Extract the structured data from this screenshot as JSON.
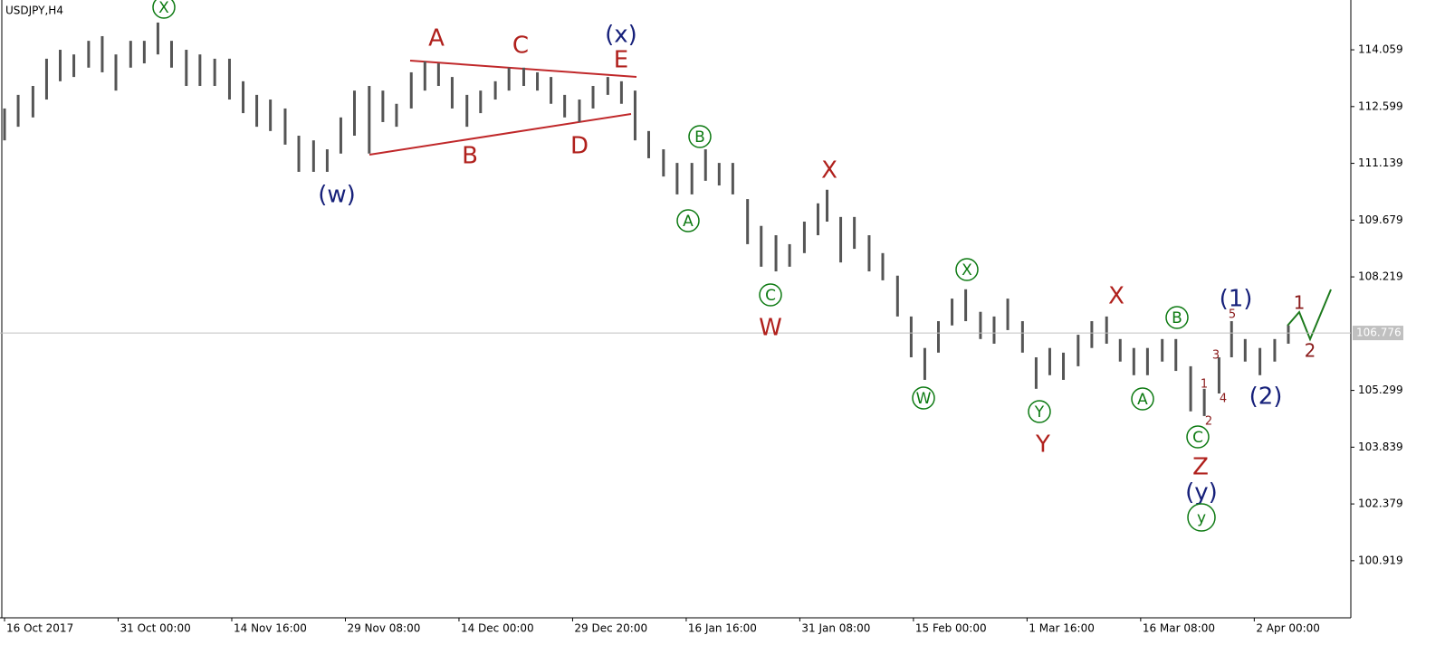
{
  "chart_data": {
    "type": "ohlc",
    "symbol": "USDJPY,H4",
    "x": [
      0,
      0.12,
      0.25,
      0.37,
      0.49,
      0.61,
      0.74,
      0.86,
      0.98,
      1.11,
      1.23,
      1.35,
      1.47,
      1.6,
      1.72,
      1.85,
      1.98,
      2.1,
      2.22,
      2.34,
      2.47,
      2.59,
      2.72,
      2.84,
      2.96,
      3.08,
      3.21,
      3.33,
      3.45,
      3.58,
      3.7,
      3.82,
      3.94,
      4.07,
      4.19,
      4.32,
      4.44,
      4.57,
      4.69,
      4.81,
      4.93,
      5.06,
      5.18,
      5.31,
      5.43,
      5.55,
      5.67,
      5.8,
      5.92,
      6.05,
      6.17,
      6.29,
      6.41,
      6.54,
      6.66,
      6.79,
      6.91,
      7.04,
      7.16,
      7.24,
      7.36,
      7.48,
      7.61,
      7.73,
      7.86,
      7.98,
      8.1,
      8.22,
      8.34,
      8.46,
      8.59,
      8.71,
      8.83,
      8.96,
      9.08,
      9.2,
      9.32,
      9.45,
      9.57,
      9.7,
      9.82,
      9.94,
      10.06,
      10.19,
      10.31,
      10.44,
      10.56,
      10.69,
      10.8,
      10.92,
      11.05,
      11.18,
      11.3
    ],
    "high": [
      112.55,
      112.9,
      113.13,
      113.83,
      114.06,
      113.94,
      114.29,
      114.41,
      113.94,
      114.29,
      114.29,
      114.76,
      114.29,
      114.06,
      113.94,
      113.83,
      113.83,
      113.25,
      112.9,
      112.78,
      112.55,
      111.85,
      111.73,
      111.5,
      112.32,
      113.01,
      113.13,
      113.01,
      112.67,
      113.48,
      113.76,
      113.71,
      113.36,
      112.9,
      113.01,
      113.25,
      113.6,
      113.6,
      113.48,
      113.36,
      112.9,
      112.78,
      113.13,
      113.36,
      113.25,
      113.01,
      111.97,
      111.5,
      111.15,
      111.15,
      111.5,
      111.15,
      111.15,
      110.22,
      109.53,
      109.29,
      109.06,
      109.64,
      110.11,
      110.46,
      109.76,
      109.76,
      109.29,
      108.83,
      108.25,
      107.2,
      106.39,
      107.08,
      107.66,
      107.9,
      107.32,
      107.2,
      107.66,
      107.08,
      106.15,
      106.39,
      106.27,
      106.73,
      107.08,
      107.2,
      106.62,
      106.39,
      106.39,
      106.62,
      106.62,
      105.92,
      105.34,
      106.15,
      107.08,
      106.62,
      106.39,
      106.62,
      106.97
    ],
    "low": [
      111.73,
      112.08,
      112.32,
      112.78,
      113.25,
      113.36,
      113.6,
      113.48,
      113.01,
      113.6,
      113.71,
      113.94,
      113.6,
      113.13,
      113.13,
      113.13,
      112.78,
      112.43,
      112.08,
      111.97,
      111.62,
      110.92,
      110.92,
      110.92,
      111.39,
      111.85,
      111.39,
      112.2,
      112.08,
      112.55,
      113.01,
      113.13,
      112.55,
      112.08,
      112.43,
      112.78,
      113.01,
      113.13,
      113.01,
      112.67,
      112.32,
      112.2,
      112.55,
      112.9,
      112.67,
      111.73,
      111.27,
      110.8,
      110.34,
      110.34,
      110.69,
      110.57,
      110.34,
      109.06,
      108.48,
      108.36,
      108.48,
      108.83,
      109.29,
      109.64,
      108.59,
      108.94,
      108.36,
      108.13,
      107.2,
      106.15,
      105.57,
      106.27,
      106.97,
      107.08,
      106.62,
      106.5,
      106.85,
      106.27,
      105.34,
      105.69,
      105.57,
      105.92,
      106.39,
      106.5,
      106.04,
      105.69,
      105.69,
      106.04,
      105.8,
      104.76,
      104.64,
      105.22,
      106.15,
      106.04,
      105.69,
      106.04,
      106.5
    ],
    "xlim": [
      -0.04,
      11.85
    ],
    "ylim": [
      99.45,
      115.34
    ],
    "yticks": [
      114.059,
      112.599,
      111.139,
      109.679,
      108.219,
      105.299,
      103.839,
      102.379,
      100.919
    ],
    "xticks": [
      {
        "value": 0,
        "label": "16 Oct 2017"
      },
      {
        "value": 1,
        "label": "31 Oct 00:00"
      },
      {
        "value": 2,
        "label": "14 Nov 16:00"
      },
      {
        "value": 3,
        "label": "29 Nov 08:00"
      },
      {
        "value": 4,
        "label": "14 Dec 00:00"
      },
      {
        "value": 5,
        "label": "29 Dec 20:00"
      },
      {
        "value": 6,
        "label": "16 Jan 16:00"
      },
      {
        "value": 7,
        "label": "31 Jan 08:00"
      },
      {
        "value": 8,
        "label": "15 Feb 00:00"
      },
      {
        "value": 9,
        "label": "1 Mar 16:00"
      },
      {
        "value": 10,
        "label": "16 Mar 08:00"
      },
      {
        "value": 11,
        "label": "2 Apr 00:00"
      }
    ],
    "last_price": 106.776,
    "color": "#555555",
    "annotations": [
      "X",
      "A",
      "C",
      "(x)",
      "E",
      "B",
      "D",
      "(w)",
      "B",
      "A",
      "X",
      "C",
      "W",
      "X",
      "W",
      "Y",
      "Y",
      "X",
      "B",
      "A",
      "(1)",
      "5",
      "3",
      "1",
      "4",
      "2",
      "C",
      "Z",
      "(y)",
      "y",
      "(2)",
      "1",
      "2"
    ]
  }
}
